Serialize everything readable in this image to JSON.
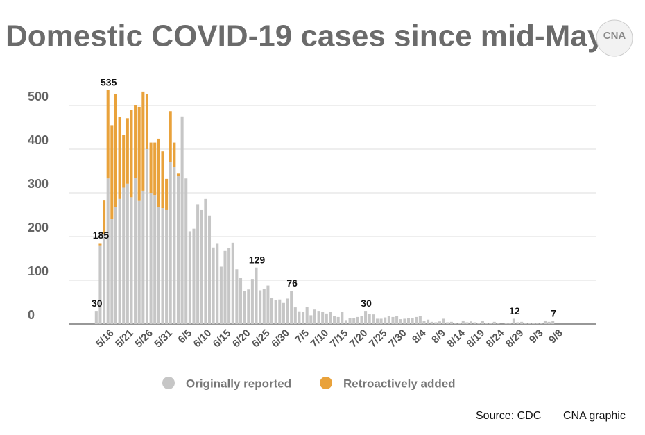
{
  "chart_data": {
    "type": "stacked_bar",
    "title": "Domestic COVID-19 cases since mid-May",
    "logo": "CNA",
    "categories": [
      null,
      null,
      "5/16",
      null,
      null,
      null,
      null,
      "5/21",
      null,
      null,
      null,
      null,
      "5/26",
      null,
      null,
      null,
      null,
      "5/31",
      null,
      null,
      null,
      null,
      "6/5",
      null,
      null,
      null,
      null,
      "6/10",
      null,
      null,
      null,
      null,
      "6/15",
      null,
      null,
      null,
      null,
      "6/20",
      null,
      null,
      null,
      null,
      "6/25",
      null,
      null,
      null,
      null,
      "6/30",
      null,
      null,
      null,
      null,
      "7/5",
      null,
      null,
      null,
      null,
      "7/10",
      null,
      null,
      null,
      null,
      "7/15",
      null,
      null,
      null,
      null,
      "7/20",
      null,
      null,
      null,
      null,
      "7/25",
      null,
      null,
      null,
      null,
      "7/30",
      null,
      null,
      null,
      null,
      "8/4",
      null,
      null,
      null,
      null,
      "8/9",
      null,
      null,
      null,
      null,
      "8/14",
      null,
      null,
      null,
      null,
      "8/19",
      null,
      null,
      null,
      null,
      "8/24",
      null,
      null,
      null,
      null,
      "8/29",
      null,
      null,
      null,
      null,
      "9/3",
      null,
      null,
      null,
      null,
      "9/8"
    ],
    "series": [
      {
        "name": "Originally reported",
        "color": "#c6c6c6",
        "values": [
          30,
          180,
          206,
          333,
          240,
          267,
          286,
          312,
          321,
          290,
          334,
          283,
          305,
          400,
          300,
          295,
          268,
          265,
          262,
          370,
          360,
          338,
          475,
          333,
          212,
          218,
          274,
          262,
          286,
          248,
          175,
          185,
          131,
          167,
          174,
          186,
          125,
          106,
          76,
          79,
          103,
          129,
          77,
          80,
          88,
          60,
          54,
          56,
          48,
          58,
          76,
          38,
          29,
          28,
          39,
          20,
          33,
          30,
          28,
          24,
          28,
          19,
          16,
          28,
          9,
          13,
          14,
          16,
          18,
          30,
          23,
          22,
          12,
          12,
          15,
          18,
          16,
          18,
          11,
          12,
          13,
          14,
          16,
          19,
          7,
          10,
          5,
          4,
          6,
          12,
          4,
          5,
          3,
          3,
          8,
          4,
          6,
          4,
          2,
          7,
          2,
          3,
          5,
          1,
          0,
          2,
          1,
          12,
          4,
          5,
          3,
          2,
          2,
          1,
          2,
          8,
          5,
          7
        ]
      },
      {
        "name": "Retroactively added",
        "color": "#e9a23b",
        "values": [
          0,
          5,
          78,
          202,
          215,
          260,
          188,
          120,
          150,
          200,
          166,
          214,
          227,
          127,
          115,
          120,
          156,
          130,
          70,
          117,
          55,
          6,
          0,
          0,
          0,
          0,
          0,
          0,
          0,
          0,
          0,
          0,
          0,
          0,
          0,
          0,
          0,
          0,
          0,
          0,
          0,
          0,
          0,
          0,
          0,
          0,
          0,
          0,
          0,
          0,
          0,
          0,
          0,
          0,
          0,
          0,
          0,
          0,
          0,
          0,
          0,
          0,
          0,
          0,
          0,
          0,
          0,
          0,
          0,
          0,
          0,
          0,
          0,
          0,
          0,
          0,
          0,
          0,
          0,
          0,
          0,
          0,
          0,
          0,
          0,
          0,
          0,
          0,
          0,
          0,
          0,
          0,
          0,
          0,
          0,
          0,
          0,
          0,
          0,
          0,
          0,
          0,
          0,
          0,
          0,
          0,
          0,
          0,
          0,
          0,
          0,
          0,
          0,
          0,
          0,
          0,
          0,
          0
        ]
      }
    ],
    "annotations": [
      {
        "index": 0,
        "text": "30"
      },
      {
        "index": 1,
        "text": "185"
      },
      {
        "index": 3,
        "text": "535"
      },
      {
        "index": 41,
        "text": "129"
      },
      {
        "index": 50,
        "text": "76"
      },
      {
        "index": 69,
        "text": "30"
      },
      {
        "index": 107,
        "text": "12"
      },
      {
        "index": 117,
        "text": "7"
      }
    ],
    "ylim": [
      0,
      535
    ],
    "yticks": [
      0,
      100,
      200,
      300,
      400,
      500
    ],
    "grid": true,
    "legend": "bottom",
    "source": "Source: CDC",
    "credit": "CNA graphic"
  }
}
